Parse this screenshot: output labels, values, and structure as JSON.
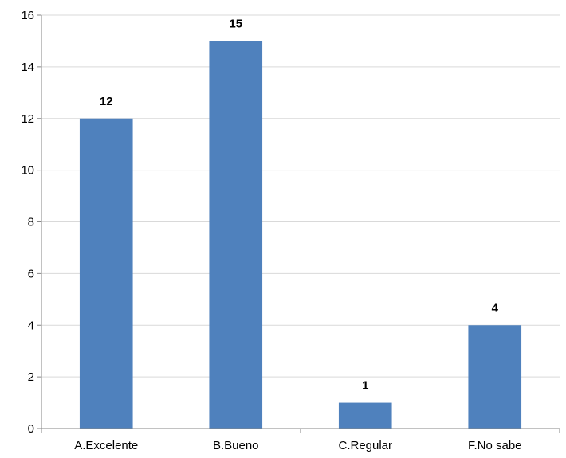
{
  "chart_data": {
    "type": "bar",
    "title": "",
    "xlabel": "",
    "ylabel": "",
    "categories": [
      "A.Excelente",
      "B.Bueno",
      "C.Regular",
      "F.No sabe"
    ],
    "values": [
      12,
      15,
      1,
      4
    ],
    "data_labels": [
      "12",
      "15",
      "1",
      "4"
    ],
    "ylim": [
      0,
      16
    ],
    "yticks": [
      0,
      2,
      4,
      6,
      8,
      10,
      12,
      14,
      16
    ],
    "ytick_labels": [
      "0",
      "2",
      "4",
      "6",
      "8",
      "10",
      "12",
      "14",
      "16"
    ],
    "grid": true,
    "legend": "none",
    "colors": {
      "bar": "#4f81bd",
      "grid": "#d9d9d9",
      "axis": "#868686"
    }
  }
}
